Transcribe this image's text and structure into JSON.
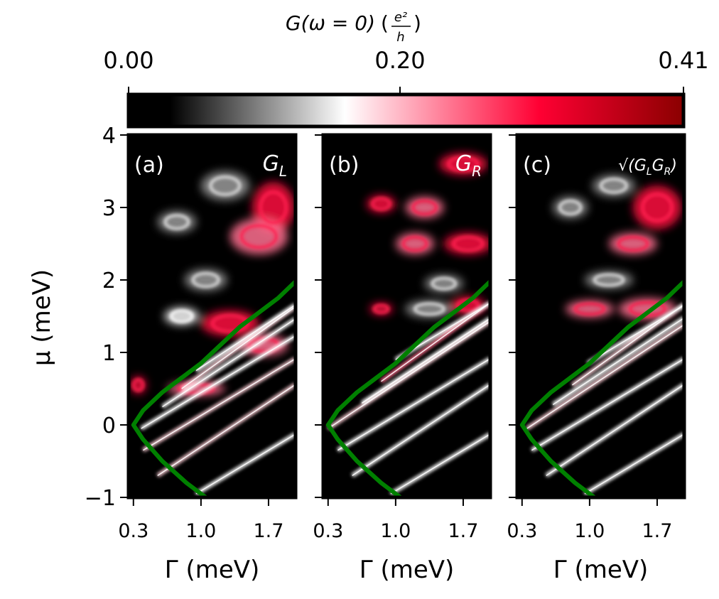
{
  "colorbar": {
    "label_prefix": "G(ω = 0)",
    "unit_numerator": "e²",
    "unit_denominator": "h",
    "ticks": [
      "0.00",
      "0.20",
      "0.41"
    ],
    "tick_values": [
      0.0,
      0.2,
      0.41
    ],
    "range": [
      0.0,
      0.41
    ],
    "colormap": [
      "#000000",
      "#000000",
      "#ffffff",
      "#ff0033",
      "#8b0000"
    ]
  },
  "chart_data": {
    "type": "heatmap",
    "shared_y": {
      "label": "μ (meV)",
      "ticks": [
        "4",
        "3",
        "2",
        "1",
        "0",
        "−1"
      ],
      "tick_values": [
        4,
        3,
        2,
        1,
        0,
        -1
      ],
      "ylim": [
        -1,
        4
      ]
    },
    "shared_x": {
      "label": "Γ (meV)",
      "ticks": [
        "0.3",
        "1.0",
        "1.7"
      ],
      "tick_values": [
        0.3,
        1.0,
        1.7
      ],
      "xlim": [
        0.25,
        1.98
      ]
    },
    "panels": [
      {
        "tag": "(a)",
        "title": "G",
        "sub": "L"
      },
      {
        "tag": "(b)",
        "title": "G",
        "sub": "R"
      },
      {
        "tag": "(c)",
        "title": "√(G",
        "sub": "L",
        "title2": "G",
        "sub2": "R",
        "title3": ")"
      }
    ],
    "green_curve": {
      "color": "#008000",
      "points": [
        [
          1.05,
          -1.0
        ],
        [
          0.85,
          -0.8
        ],
        [
          0.6,
          -0.5
        ],
        [
          0.4,
          -0.2
        ],
        [
          0.3,
          0.0
        ],
        [
          0.4,
          0.2
        ],
        [
          0.6,
          0.45
        ],
        [
          0.8,
          0.65
        ],
        [
          1.0,
          0.85
        ],
        [
          1.2,
          1.1
        ],
        [
          1.4,
          1.35
        ],
        [
          1.6,
          1.55
        ],
        [
          1.8,
          1.75
        ],
        [
          1.98,
          1.98
        ]
      ]
    },
    "features": [
      {
        "panel": 0,
        "stripes": [
          {
            "mu0": -0.95,
            "g0": 0.95,
            "g1": 1.98,
            "slope": 0.5,
            "c": "w"
          },
          {
            "mu0": -0.7,
            "g0": 0.55,
            "g1": 1.98,
            "slope": 0.55,
            "c": "pw"
          },
          {
            "mu0": -0.35,
            "g0": 0.4,
            "g1": 1.98,
            "slope": 0.5,
            "c": "pw"
          },
          {
            "mu0": -0.05,
            "g0": 0.38,
            "g1": 1.98,
            "slope": 0.5,
            "c": "w"
          },
          {
            "mu0": 0.25,
            "g0": 0.6,
            "g1": 1.98,
            "slope": 0.55,
            "c": "w"
          },
          {
            "mu0": 0.5,
            "g0": 0.8,
            "g1": 1.98,
            "slope": 0.6,
            "c": "pw"
          },
          {
            "mu0": 0.75,
            "g0": 0.95,
            "g1": 1.98,
            "slope": 0.55,
            "c": "w"
          }
        ],
        "blobs": [
          {
            "g": 1.75,
            "mu": 3.0,
            "rx": 0.22,
            "ry": 0.35,
            "c": "r"
          },
          {
            "g": 1.6,
            "mu": 2.6,
            "rx": 0.3,
            "ry": 0.25,
            "c": "p"
          },
          {
            "g": 0.75,
            "mu": 2.8,
            "rx": 0.2,
            "ry": 0.15,
            "c": "g"
          },
          {
            "g": 1.25,
            "mu": 3.3,
            "rx": 0.25,
            "ry": 0.2,
            "c": "g"
          },
          {
            "g": 1.3,
            "mu": 1.4,
            "rx": 0.3,
            "ry": 0.18,
            "c": "r"
          },
          {
            "g": 0.8,
            "mu": 1.5,
            "rx": 0.18,
            "ry": 0.12,
            "c": "w"
          },
          {
            "g": 1.65,
            "mu": 1.1,
            "rx": 0.25,
            "ry": 0.15,
            "c": "p"
          },
          {
            "g": 1.05,
            "mu": 2.0,
            "rx": 0.22,
            "ry": 0.15,
            "c": "g"
          },
          {
            "g": 0.95,
            "mu": 0.5,
            "rx": 0.3,
            "ry": 0.1,
            "c": "p"
          },
          {
            "g": 0.35,
            "mu": 0.55,
            "rx": 0.08,
            "ry": 0.12,
            "c": "r"
          }
        ]
      },
      {
        "panel": 1,
        "stripes": [
          {
            "mu0": -0.95,
            "g0": 0.95,
            "g1": 1.98,
            "slope": 0.5,
            "c": "w"
          },
          {
            "mu0": -0.7,
            "g0": 0.55,
            "g1": 1.98,
            "slope": 0.55,
            "c": "w"
          },
          {
            "mu0": -0.35,
            "g0": 0.4,
            "g1": 1.98,
            "slope": 0.5,
            "c": "w"
          },
          {
            "mu0": -0.05,
            "g0": 0.3,
            "g1": 1.98,
            "slope": 0.55,
            "c": "pw"
          },
          {
            "mu0": 0.3,
            "g0": 0.65,
            "g1": 1.98,
            "slope": 0.55,
            "c": "w"
          },
          {
            "mu0": 0.6,
            "g0": 0.85,
            "g1": 1.98,
            "slope": 0.6,
            "c": "p"
          },
          {
            "mu0": 0.9,
            "g0": 1.0,
            "g1": 1.98,
            "slope": 0.5,
            "c": "w"
          }
        ],
        "blobs": [
          {
            "g": 0.85,
            "mu": 3.05,
            "rx": 0.15,
            "ry": 0.12,
            "c": "r"
          },
          {
            "g": 1.3,
            "mu": 3.0,
            "rx": 0.2,
            "ry": 0.15,
            "c": "p"
          },
          {
            "g": 1.7,
            "mu": 3.6,
            "rx": 0.25,
            "ry": 0.15,
            "c": "r"
          },
          {
            "g": 1.75,
            "mu": 2.5,
            "rx": 0.25,
            "ry": 0.15,
            "c": "r"
          },
          {
            "g": 1.2,
            "mu": 2.5,
            "rx": 0.2,
            "ry": 0.15,
            "c": "p"
          },
          {
            "g": 0.85,
            "mu": 1.6,
            "rx": 0.12,
            "ry": 0.08,
            "c": "r"
          },
          {
            "g": 1.35,
            "mu": 1.6,
            "rx": 0.25,
            "ry": 0.12,
            "c": "g"
          },
          {
            "g": 1.75,
            "mu": 1.65,
            "rx": 0.18,
            "ry": 0.12,
            "c": "r"
          },
          {
            "g": 1.5,
            "mu": 1.95,
            "rx": 0.2,
            "ry": 0.12,
            "c": "g"
          }
        ]
      },
      {
        "panel": 2,
        "stripes": [
          {
            "mu0": -0.95,
            "g0": 0.95,
            "g1": 1.98,
            "slope": 0.5,
            "c": "w"
          },
          {
            "mu0": -0.7,
            "g0": 0.55,
            "g1": 1.98,
            "slope": 0.55,
            "c": "w"
          },
          {
            "mu0": -0.35,
            "g0": 0.4,
            "g1": 1.98,
            "slope": 0.5,
            "c": "w"
          },
          {
            "mu0": -0.05,
            "g0": 0.35,
            "g1": 1.98,
            "slope": 0.55,
            "c": "pw"
          },
          {
            "mu0": 0.28,
            "g0": 0.62,
            "g1": 1.98,
            "slope": 0.55,
            "c": "w"
          },
          {
            "mu0": 0.55,
            "g0": 0.82,
            "g1": 1.98,
            "slope": 0.6,
            "c": "pw"
          },
          {
            "mu0": 0.85,
            "g0": 0.98,
            "g1": 1.98,
            "slope": 0.5,
            "c": "w"
          }
        ],
        "blobs": [
          {
            "g": 1.7,
            "mu": 3.0,
            "rx": 0.25,
            "ry": 0.3,
            "c": "r"
          },
          {
            "g": 1.45,
            "mu": 2.5,
            "rx": 0.25,
            "ry": 0.15,
            "c": "p"
          },
          {
            "g": 0.8,
            "mu": 3.0,
            "rx": 0.18,
            "ry": 0.15,
            "c": "g"
          },
          {
            "g": 1.25,
            "mu": 3.3,
            "rx": 0.22,
            "ry": 0.15,
            "c": "g"
          },
          {
            "g": 1.0,
            "mu": 1.6,
            "rx": 0.25,
            "ry": 0.12,
            "c": "p"
          },
          {
            "g": 1.6,
            "mu": 1.6,
            "rx": 0.3,
            "ry": 0.15,
            "c": "p"
          },
          {
            "g": 1.2,
            "mu": 2.0,
            "rx": 0.25,
            "ry": 0.12,
            "c": "g"
          }
        ]
      }
    ]
  }
}
